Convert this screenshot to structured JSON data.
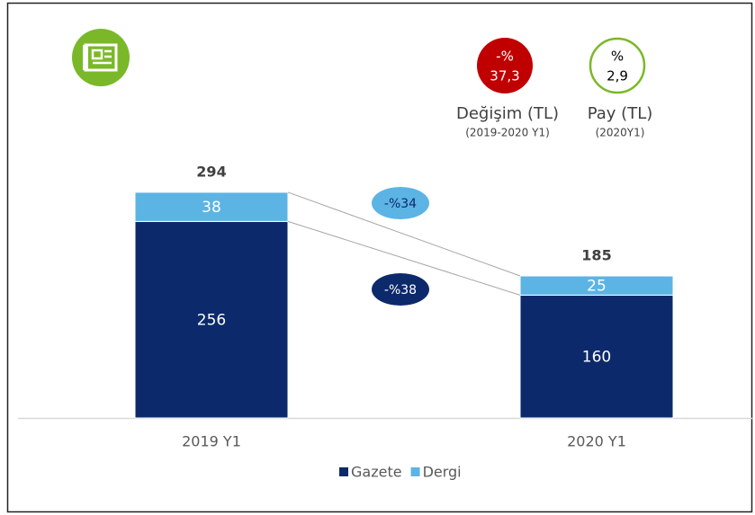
{
  "chart_data": {
    "type": "bar",
    "stacked": true,
    "categories": [
      "2019 Y1",
      "2020 Y1"
    ],
    "series": [
      {
        "name": "Gazete",
        "color": "#0c2a6b",
        "values": [
          256,
          160
        ]
      },
      {
        "name": "Dergi",
        "color": "#5cb4e4",
        "values": [
          38,
          25
        ]
      }
    ],
    "totals": [
      294,
      185
    ],
    "changes": [
      {
        "value": -34,
        "label": "-%34",
        "color": "#5cb4e4",
        "text_color": "#0c2a6b"
      },
      {
        "value": -38,
        "label": "-%38",
        "color": "#0c2a6b",
        "text_color": "#ffffff"
      }
    ],
    "badges": [
      {
        "sign": "-%",
        "value": "37,3",
        "label": "Değişim (TL)",
        "sublabel": "(2019-2020 Y1)",
        "color": "#c00000",
        "filled": true
      },
      {
        "sign": "%",
        "value": "2,9",
        "label": "Pay (TL)",
        "sublabel": "(2020Y1)",
        "color": "#7ab829",
        "filled": false
      }
    ],
    "legend": "bottom"
  }
}
